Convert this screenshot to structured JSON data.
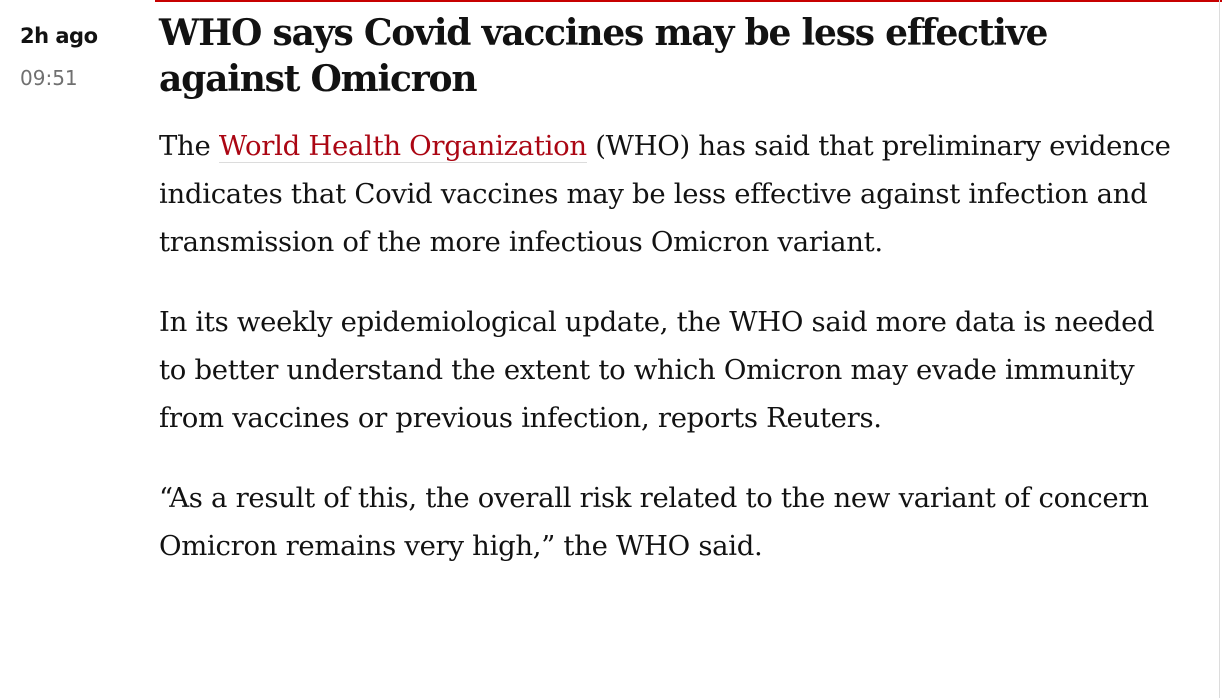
{
  "timestamp": {
    "relative": "2h ago",
    "time": "09:51"
  },
  "title": "WHO says Covid vaccines may be less effective against Omicron",
  "paragraphs": [
    {
      "parts": [
        "The ",
        "World Health Organization",
        " (WHO) has said that preliminary evidence indicates that Covid vaccines may be less effective against infection and transmission of the more infectious Omicron variant."
      ]
    },
    {
      "text": "In its weekly epidemiological update, the WHO said more data is needed to better understand the extent to which Omicron may evade immunity from vaccines or previous infection, reports Reuters."
    },
    {
      "text": "“As a result of this, the overall risk related to the new variant of concern Omicron remains very high,” the WHO said."
    }
  ]
}
